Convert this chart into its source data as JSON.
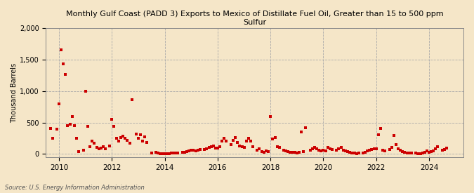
{
  "title": "Monthly Gulf Coast (PADD 3) Exports to Mexico of Distillate Fuel Oil, Greater than 15 to 500 ppm\nSulfur",
  "ylabel": "Thousand Barrels",
  "source": "Source: U.S. Energy Information Administration",
  "background_color": "#f5e6c8",
  "marker_color": "#cc0000",
  "ylim": [
    -50,
    2000
  ],
  "yticks": [
    0,
    500,
    1000,
    1500,
    2000
  ],
  "ytick_labels": [
    "0",
    "500",
    "1,000",
    "1,500",
    "2,000"
  ],
  "xlim": [
    2009.5,
    2025.3
  ],
  "xticks": [
    2010,
    2012,
    2014,
    2016,
    2018,
    2020,
    2022,
    2024
  ],
  "data": [
    [
      2009.67,
      400
    ],
    [
      2009.75,
      250
    ],
    [
      2009.92,
      390
    ],
    [
      2010.0,
      800
    ],
    [
      2010.08,
      1660
    ],
    [
      2010.17,
      1430
    ],
    [
      2010.25,
      1260
    ],
    [
      2010.33,
      455
    ],
    [
      2010.42,
      470
    ],
    [
      2010.5,
      600
    ],
    [
      2010.58,
      450
    ],
    [
      2010.67,
      250
    ],
    [
      2010.75,
      40
    ],
    [
      2010.92,
      60
    ],
    [
      2011.0,
      1000
    ],
    [
      2011.08,
      440
    ],
    [
      2011.17,
      120
    ],
    [
      2011.25,
      200
    ],
    [
      2011.33,
      175
    ],
    [
      2011.42,
      105
    ],
    [
      2011.5,
      80
    ],
    [
      2011.58,
      95
    ],
    [
      2011.67,
      120
    ],
    [
      2011.75,
      85
    ],
    [
      2011.92,
      130
    ],
    [
      2012.0,
      550
    ],
    [
      2012.08,
      440
    ],
    [
      2012.17,
      250
    ],
    [
      2012.25,
      200
    ],
    [
      2012.33,
      260
    ],
    [
      2012.42,
      280
    ],
    [
      2012.5,
      250
    ],
    [
      2012.58,
      220
    ],
    [
      2012.67,
      170
    ],
    [
      2012.75,
      860
    ],
    [
      2012.92,
      320
    ],
    [
      2013.0,
      250
    ],
    [
      2013.08,
      300
    ],
    [
      2013.17,
      200
    ],
    [
      2013.25,
      270
    ],
    [
      2013.33,
      185
    ],
    [
      2013.5,
      15
    ],
    [
      2013.67,
      25
    ],
    [
      2013.75,
      10
    ],
    [
      2013.83,
      5
    ],
    [
      2013.92,
      8
    ],
    [
      2014.0,
      5
    ],
    [
      2014.08,
      5
    ],
    [
      2014.17,
      8
    ],
    [
      2014.25,
      10
    ],
    [
      2014.33,
      12
    ],
    [
      2014.42,
      15
    ],
    [
      2014.5,
      20
    ],
    [
      2014.67,
      25
    ],
    [
      2014.75,
      30
    ],
    [
      2014.83,
      40
    ],
    [
      2014.92,
      50
    ],
    [
      2015.0,
      60
    ],
    [
      2015.08,
      55
    ],
    [
      2015.17,
      50
    ],
    [
      2015.25,
      60
    ],
    [
      2015.33,
      70
    ],
    [
      2015.5,
      75
    ],
    [
      2015.58,
      80
    ],
    [
      2015.67,
      100
    ],
    [
      2015.75,
      120
    ],
    [
      2015.83,
      130
    ],
    [
      2015.92,
      90
    ],
    [
      2016.0,
      90
    ],
    [
      2016.08,
      110
    ],
    [
      2016.17,
      200
    ],
    [
      2016.25,
      250
    ],
    [
      2016.33,
      200
    ],
    [
      2016.5,
      150
    ],
    [
      2016.58,
      220
    ],
    [
      2016.67,
      260
    ],
    [
      2016.75,
      180
    ],
    [
      2016.83,
      130
    ],
    [
      2016.92,
      110
    ],
    [
      2017.0,
      100
    ],
    [
      2017.08,
      200
    ],
    [
      2017.17,
      250
    ],
    [
      2017.25,
      200
    ],
    [
      2017.33,
      120
    ],
    [
      2017.5,
      60
    ],
    [
      2017.58,
      80
    ],
    [
      2017.67,
      40
    ],
    [
      2017.75,
      30
    ],
    [
      2017.83,
      50
    ],
    [
      2017.92,
      40
    ],
    [
      2018.0,
      590
    ],
    [
      2018.08,
      240
    ],
    [
      2018.17,
      260
    ],
    [
      2018.25,
      120
    ],
    [
      2018.33,
      100
    ],
    [
      2018.5,
      60
    ],
    [
      2018.58,
      50
    ],
    [
      2018.67,
      40
    ],
    [
      2018.75,
      30
    ],
    [
      2018.83,
      25
    ],
    [
      2018.92,
      30
    ],
    [
      2019.0,
      20
    ],
    [
      2019.08,
      30
    ],
    [
      2019.17,
      350
    ],
    [
      2019.25,
      40
    ],
    [
      2019.33,
      420
    ],
    [
      2019.5,
      60
    ],
    [
      2019.58,
      80
    ],
    [
      2019.67,
      100
    ],
    [
      2019.75,
      80
    ],
    [
      2019.83,
      60
    ],
    [
      2019.92,
      50
    ],
    [
      2020.0,
      60
    ],
    [
      2020.08,
      50
    ],
    [
      2020.17,
      100
    ],
    [
      2020.25,
      80
    ],
    [
      2020.33,
      70
    ],
    [
      2020.5,
      60
    ],
    [
      2020.58,
      80
    ],
    [
      2020.67,
      100
    ],
    [
      2020.75,
      60
    ],
    [
      2020.83,
      50
    ],
    [
      2020.92,
      40
    ],
    [
      2021.0,
      30
    ],
    [
      2021.08,
      20
    ],
    [
      2021.17,
      10
    ],
    [
      2021.25,
      5
    ],
    [
      2021.33,
      10
    ],
    [
      2021.5,
      15
    ],
    [
      2021.58,
      30
    ],
    [
      2021.67,
      50
    ],
    [
      2021.75,
      60
    ],
    [
      2021.83,
      70
    ],
    [
      2021.92,
      80
    ],
    [
      2022.0,
      80
    ],
    [
      2022.08,
      310
    ],
    [
      2022.17,
      400
    ],
    [
      2022.25,
      60
    ],
    [
      2022.33,
      50
    ],
    [
      2022.5,
      70
    ],
    [
      2022.58,
      100
    ],
    [
      2022.67,
      290
    ],
    [
      2022.75,
      150
    ],
    [
      2022.83,
      80
    ],
    [
      2022.92,
      60
    ],
    [
      2023.0,
      40
    ],
    [
      2023.08,
      30
    ],
    [
      2023.17,
      10
    ],
    [
      2023.25,
      20
    ],
    [
      2023.33,
      15
    ],
    [
      2023.5,
      10
    ],
    [
      2023.58,
      5
    ],
    [
      2023.67,
      8
    ],
    [
      2023.75,
      15
    ],
    [
      2023.83,
      30
    ],
    [
      2023.92,
      50
    ],
    [
      2024.0,
      30
    ],
    [
      2024.08,
      40
    ],
    [
      2024.17,
      50
    ],
    [
      2024.25,
      80
    ],
    [
      2024.33,
      120
    ],
    [
      2024.5,
      60
    ],
    [
      2024.58,
      70
    ],
    [
      2024.67,
      90
    ]
  ]
}
